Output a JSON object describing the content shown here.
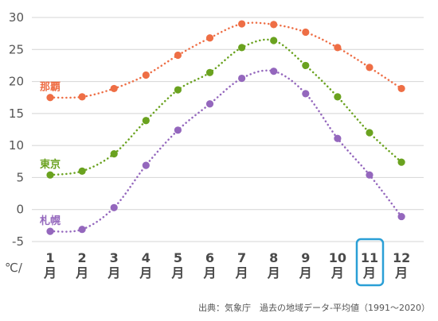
{
  "chart_data": {
    "type": "line",
    "unit_label": "℃/",
    "month_suffix": "月",
    "categories": [
      "1",
      "2",
      "3",
      "4",
      "5",
      "6",
      "7",
      "8",
      "9",
      "10",
      "11",
      "12"
    ],
    "ylim": [
      -5,
      30
    ],
    "yticks": [
      30,
      25,
      20,
      15,
      10,
      5,
      0,
      -5
    ],
    "grid": true,
    "highlighted_category": "11",
    "highlight_color": "#2a9fd6",
    "series": [
      {
        "name": "那覇",
        "color": "#ee6e45",
        "values": [
          17.5,
          17.6,
          18.9,
          21.0,
          24.1,
          26.8,
          29.0,
          28.9,
          27.7,
          25.3,
          22.2,
          18.9
        ]
      },
      {
        "name": "東京",
        "color": "#6aa21f",
        "values": [
          5.4,
          6.0,
          8.7,
          13.9,
          18.7,
          21.4,
          25.3,
          26.4,
          22.5,
          17.6,
          12.0,
          7.4
        ]
      },
      {
        "name": "札幌",
        "color": "#9467bd",
        "values": [
          -3.4,
          -3.1,
          0.3,
          6.9,
          12.4,
          16.5,
          20.5,
          21.6,
          18.1,
          11.1,
          5.4,
          -1.1
        ]
      }
    ]
  },
  "source_note": "出典：気象庁　過去の地域データ-平均値（1991～2020）"
}
